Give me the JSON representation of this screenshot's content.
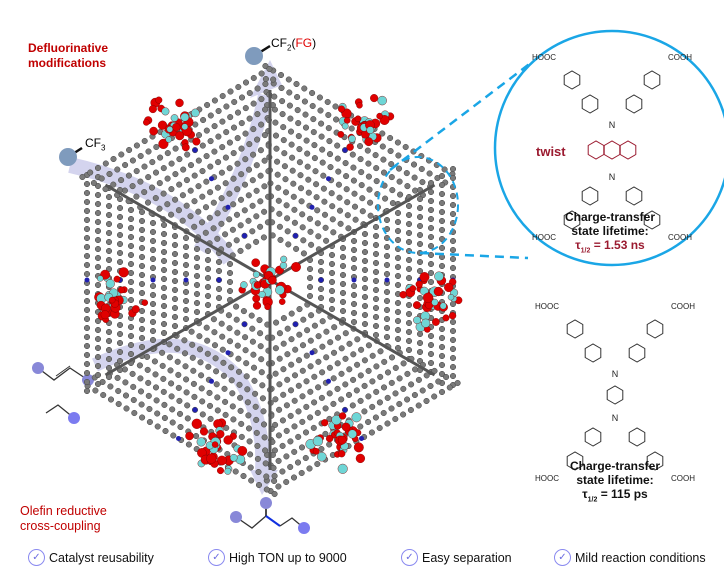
{
  "labels": {
    "defluorinative": "Defluorinative\nmodifications",
    "olefin": "Olefin reductive\ncross-coupling",
    "cf3": "CF",
    "cf3_sub": "3",
    "cf2": "CF",
    "cf2_sub": "2",
    "fg_open": "(",
    "fg": "FG",
    "fg_close": ")",
    "twist": "twist"
  },
  "linker_top": {
    "groups": [
      "HOOC",
      "COOH",
      "HOOC",
      "COOH"
    ],
    "n": "N",
    "caption_1": "Charge-transfer",
    "caption_2": "state lifetime:",
    "tau": "τ",
    "tau_sub": "1/2",
    "value": "= 1.53 ns"
  },
  "linker_bottom": {
    "groups": [
      "HOOC",
      "COOH",
      "HOOC",
      "COOH"
    ],
    "n": "N",
    "caption_1": "Charge-transfer",
    "caption_2": "state lifetime:",
    "tau": "τ",
    "tau_sub": "1/2",
    "value": "= 115 ps"
  },
  "features": [
    {
      "icon": "check-circle-icon",
      "label": "Catalyst reusability"
    },
    {
      "icon": "check-circle-icon",
      "label": "High TON up to 9000"
    },
    {
      "icon": "check-circle-icon",
      "label": "Easy separation"
    },
    {
      "icon": "check-circle-icon",
      "label": "Mild reaction conditions"
    }
  ],
  "colors": {
    "accent_red": "#c00000",
    "twist": "#9b1b30",
    "circle": "#1aa6e6",
    "arrow": "#d4d4ee",
    "substrate_ball": "#7f9bbd",
    "olefin_ball": "#8888d8"
  }
}
